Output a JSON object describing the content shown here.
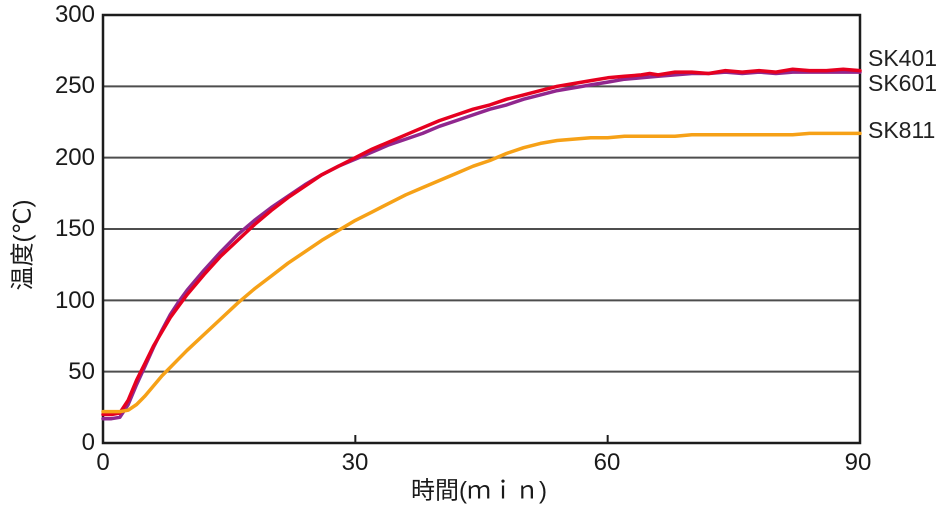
{
  "chart_data": {
    "type": "line",
    "title": "",
    "xlabel": "時間(ｍｉｎ)",
    "ylabel": "温度(℃)",
    "xlim": [
      0,
      90
    ],
    "ylim": [
      0,
      300
    ],
    "x_ticks": [
      0,
      30,
      60,
      90
    ],
    "y_ticks": [
      0,
      50,
      100,
      150,
      200,
      250,
      300
    ],
    "grid": "horizontal",
    "legend_position": "right-outside",
    "series": [
      {
        "name": "SK401",
        "color": "#e60020",
        "points": [
          [
            0,
            20
          ],
          [
            1,
            20
          ],
          [
            2,
            21
          ],
          [
            3,
            30
          ],
          [
            4,
            44
          ],
          [
            5,
            56
          ],
          [
            6,
            68
          ],
          [
            7,
            78
          ],
          [
            8,
            88
          ],
          [
            9,
            96
          ],
          [
            10,
            104
          ],
          [
            12,
            118
          ],
          [
            14,
            131
          ],
          [
            16,
            142
          ],
          [
            18,
            153
          ],
          [
            20,
            163
          ],
          [
            22,
            172
          ],
          [
            24,
            180
          ],
          [
            26,
            188
          ],
          [
            28,
            194
          ],
          [
            30,
            200
          ],
          [
            32,
            206
          ],
          [
            34,
            211
          ],
          [
            36,
            216
          ],
          [
            38,
            221
          ],
          [
            40,
            226
          ],
          [
            42,
            230
          ],
          [
            44,
            234
          ],
          [
            46,
            237
          ],
          [
            48,
            241
          ],
          [
            50,
            244
          ],
          [
            52,
            247
          ],
          [
            54,
            250
          ],
          [
            56,
            252
          ],
          [
            58,
            254
          ],
          [
            60,
            256
          ],
          [
            62,
            257
          ],
          [
            64,
            258
          ],
          [
            65,
            259
          ],
          [
            66,
            258
          ],
          [
            68,
            260
          ],
          [
            70,
            260
          ],
          [
            72,
            259
          ],
          [
            74,
            261
          ],
          [
            76,
            260
          ],
          [
            78,
            261
          ],
          [
            80,
            260
          ],
          [
            82,
            262
          ],
          [
            84,
            261
          ],
          [
            86,
            261
          ],
          [
            88,
            262
          ],
          [
            90,
            261
          ]
        ]
      },
      {
        "name": "SK601",
        "color": "#90278e",
        "points": [
          [
            0,
            17
          ],
          [
            1,
            17
          ],
          [
            2,
            18
          ],
          [
            3,
            27
          ],
          [
            4,
            41
          ],
          [
            5,
            54
          ],
          [
            6,
            67
          ],
          [
            7,
            79
          ],
          [
            8,
            90
          ],
          [
            9,
            99
          ],
          [
            10,
            107
          ],
          [
            12,
            121
          ],
          [
            14,
            134
          ],
          [
            16,
            146
          ],
          [
            18,
            156
          ],
          [
            20,
            165
          ],
          [
            22,
            173
          ],
          [
            24,
            181
          ],
          [
            26,
            188
          ],
          [
            28,
            194
          ],
          [
            30,
            199
          ],
          [
            32,
            204
          ],
          [
            34,
            209
          ],
          [
            36,
            213
          ],
          [
            38,
            217
          ],
          [
            40,
            222
          ],
          [
            42,
            226
          ],
          [
            44,
            230
          ],
          [
            46,
            234
          ],
          [
            48,
            237
          ],
          [
            50,
            241
          ],
          [
            52,
            244
          ],
          [
            54,
            247
          ],
          [
            56,
            249
          ],
          [
            58,
            251
          ],
          [
            60,
            253
          ],
          [
            62,
            255
          ],
          [
            64,
            256
          ],
          [
            66,
            257
          ],
          [
            68,
            258
          ],
          [
            70,
            259
          ],
          [
            72,
            259
          ],
          [
            74,
            260
          ],
          [
            76,
            259
          ],
          [
            78,
            260
          ],
          [
            80,
            259
          ],
          [
            82,
            260
          ],
          [
            84,
            260
          ],
          [
            86,
            260
          ],
          [
            88,
            260
          ],
          [
            90,
            260
          ]
        ]
      },
      {
        "name": "SK811",
        "color": "#f6a117",
        "points": [
          [
            0,
            22
          ],
          [
            1,
            22
          ],
          [
            2,
            22
          ],
          [
            3,
            23
          ],
          [
            4,
            27
          ],
          [
            5,
            33
          ],
          [
            6,
            40
          ],
          [
            7,
            47
          ],
          [
            8,
            53
          ],
          [
            9,
            59
          ],
          [
            10,
            65
          ],
          [
            12,
            76
          ],
          [
            14,
            87
          ],
          [
            16,
            98
          ],
          [
            18,
            108
          ],
          [
            20,
            117
          ],
          [
            22,
            126
          ],
          [
            24,
            134
          ],
          [
            26,
            142
          ],
          [
            28,
            149
          ],
          [
            30,
            156
          ],
          [
            32,
            162
          ],
          [
            34,
            168
          ],
          [
            36,
            174
          ],
          [
            38,
            179
          ],
          [
            40,
            184
          ],
          [
            42,
            189
          ],
          [
            44,
            194
          ],
          [
            46,
            198
          ],
          [
            48,
            203
          ],
          [
            50,
            207
          ],
          [
            52,
            210
          ],
          [
            54,
            212
          ],
          [
            56,
            213
          ],
          [
            58,
            214
          ],
          [
            60,
            214
          ],
          [
            62,
            215
          ],
          [
            64,
            215
          ],
          [
            66,
            215
          ],
          [
            68,
            215
          ],
          [
            70,
            216
          ],
          [
            72,
            216
          ],
          [
            74,
            216
          ],
          [
            76,
            216
          ],
          [
            78,
            216
          ],
          [
            80,
            216
          ],
          [
            82,
            216
          ],
          [
            84,
            217
          ],
          [
            86,
            217
          ],
          [
            88,
            217
          ],
          [
            90,
            217
          ]
        ]
      }
    ]
  },
  "axes": {
    "y_tick_labels": [
      "300",
      "250",
      "200",
      "150",
      "100",
      "50",
      "0"
    ],
    "x_tick_labels": [
      "0",
      "30",
      "60",
      "90"
    ],
    "y_title": "温度(℃)",
    "x_title": "時間(ｍｉｎ)"
  },
  "legend": {
    "sk401": "SK401",
    "sk601": "SK601",
    "sk811": "SK811"
  },
  "colors": {
    "grid": "#4d4d4d",
    "frame": "#1c1c1c",
    "text": "#1a1a1a",
    "background": "#ffffff",
    "sk401": "#e60020",
    "sk601": "#90278e",
    "sk811": "#f6a117"
  }
}
